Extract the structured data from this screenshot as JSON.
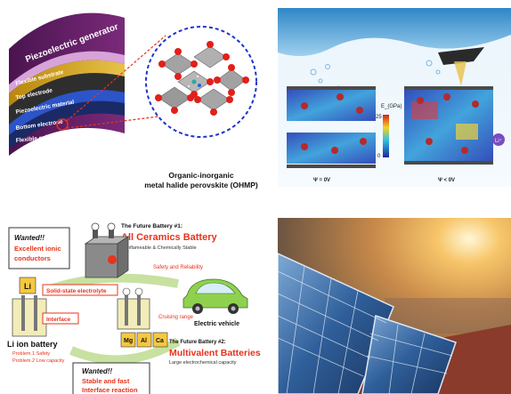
{
  "piezo": {
    "title": "Piezoelectric generator",
    "layers": [
      "Flexible substrate",
      "Top electrode",
      "Piezoelectric material",
      "Bottom electrode",
      "Flexible substrate"
    ],
    "caption_line1": "Organic-inorganic",
    "caption_line2": "metal halide perovskite (OHMP)"
  },
  "stress": {
    "scale_label": "E_(GPa)",
    "scale_max": "25",
    "scale_min": "0",
    "left_psi": "Ψ = 0V",
    "right_psi": "Ψ < 0V",
    "ion": "Li⁺"
  },
  "battery": {
    "wanted1_title": "Wanted!!",
    "wanted1_text1": "Excellent ionic",
    "wanted1_text2": "conductors",
    "future1_header": "The Future Battery #1:",
    "future1_title": "All Ceramics Battery",
    "future1_sub": "Nonflameable & Chemically Stable",
    "safety": "Safety and Reliability",
    "solid": "Solid-state electrolyte",
    "interface": "Interface",
    "cruising": "Cruising range",
    "ev": "Electric vehicle",
    "li_symbol": "Li",
    "li_battery": "Li ion battery",
    "problem1": "Problem.1 Safety",
    "problem2": "Problem.2 Low capacity",
    "future2_header": "The Future Battery #2:",
    "future2_title": "Multivalent Batteries",
    "future2_sub": "Large electrochemical capacity",
    "elements": [
      "Mg",
      "Al",
      "Ca"
    ],
    "wanted2_title": "Wanted!!",
    "wanted2_text1": "Stable and fast",
    "wanted2_text2": "Interface reaction"
  },
  "colors": {
    "red": "#e8331c",
    "blue_dash": "#2233cc",
    "car_green": "#8fd14f"
  }
}
